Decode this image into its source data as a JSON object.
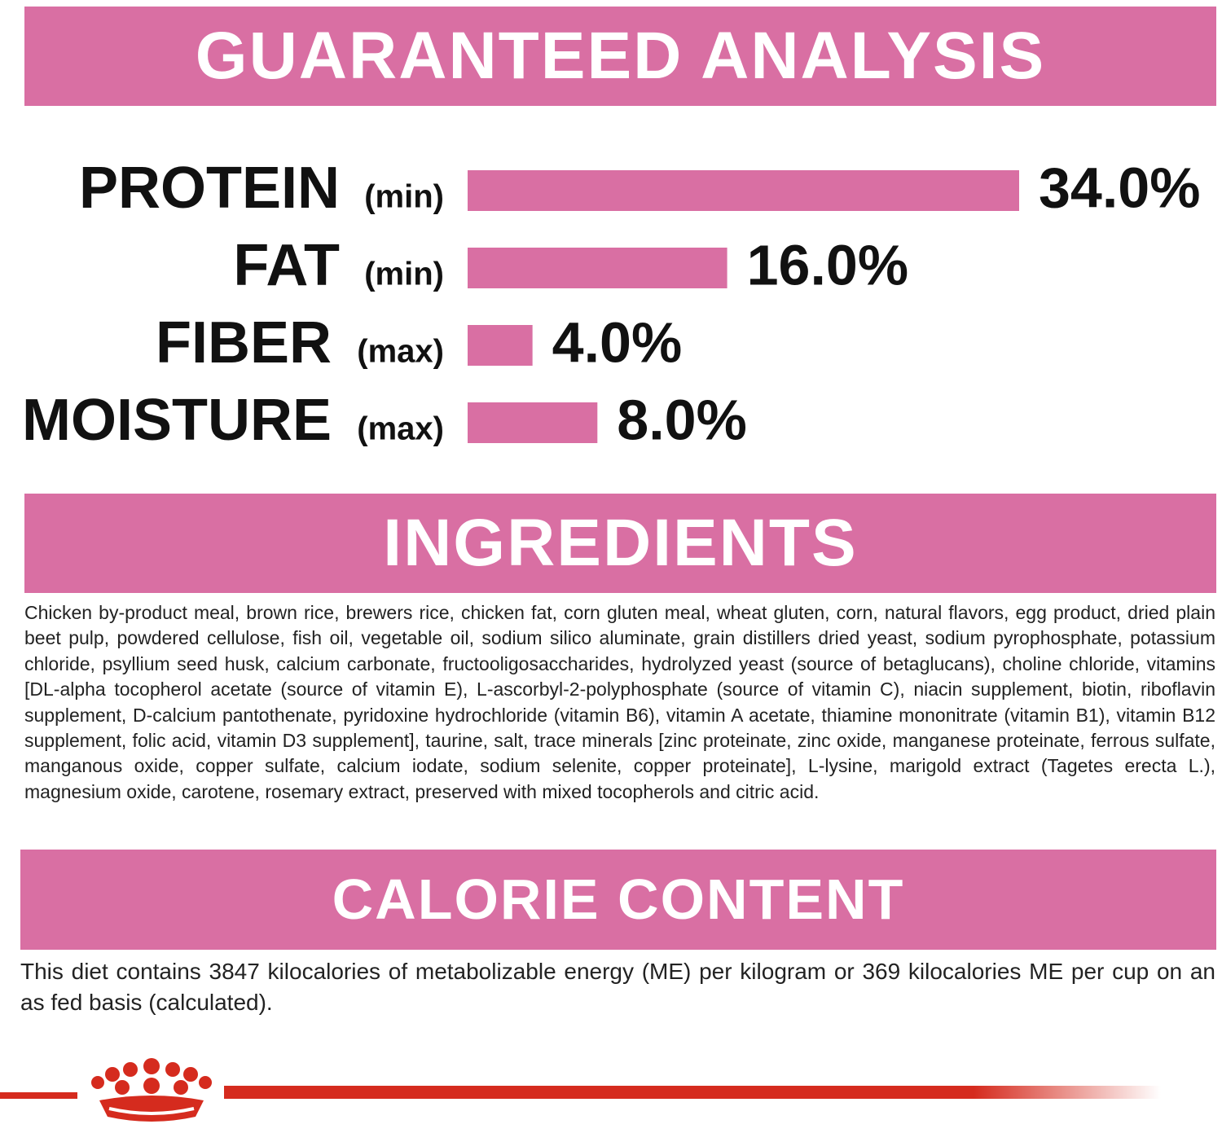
{
  "sections": {
    "analysis_title": "GUARANTEED ANALYSIS",
    "ingredients_title": "INGREDIENTS",
    "ingredients_text": "Chicken by-product meal, brown rice, brewers rice, chicken fat, corn gluten meal, wheat gluten, corn, natural flavors, egg product, dried plain beet pulp, powdered cellulose, fish oil, vegetable oil, sodium silico aluminate, grain distillers dried yeast, sodium pyrophosphate, potassium chloride, psyllium seed husk, calcium carbonate, fructooligosaccharides, hydrolyzed yeast (source of betaglucans), choline chloride, vitamins [DL-alpha tocopherol acetate (source of vitamin E), L-ascorbyl-2-polyphosphate (source of vitamin C), niacin supplement, biotin, riboflavin supplement, D-calcium pantothenate, pyridoxine hydrochloride (vitamin B6), vitamin A acetate, thiamine mononitrate (vitamin B1), vitamin B12 supplement, folic acid, vitamin D3 supplement], taurine, salt, trace minerals [zinc proteinate, zinc oxide, manganese proteinate, ferrous sulfate, manganous oxide, copper sulfate, calcium iodate, sodium selenite, copper proteinate], L-lysine, marigold extract (Tagetes erecta L.), magnesium oxide, carotene, rosemary extract, preserved with mixed tocopherols and citric acid.",
    "calorie_title": "CALORIE CONTENT",
    "calorie_text": "This diet contains 3847 kilocalories of metabolizable energy (ME) per kilogram or 369 kilocalories ME per cup on an as fed basis (calculated)."
  },
  "chart_data": {
    "type": "bar",
    "orientation": "horizontal",
    "categories": [
      "PROTEIN",
      "FAT",
      "FIBER",
      "MOISTURE"
    ],
    "qualifiers": [
      "(min)",
      "(min)",
      "(max)",
      "(max)"
    ],
    "values": [
      34,
      16,
      4,
      8
    ],
    "value_labels": [
      "34.0%",
      "16.0%",
      "4.0%",
      "8.0%"
    ],
    "color": "#d96fa3"
  }
}
